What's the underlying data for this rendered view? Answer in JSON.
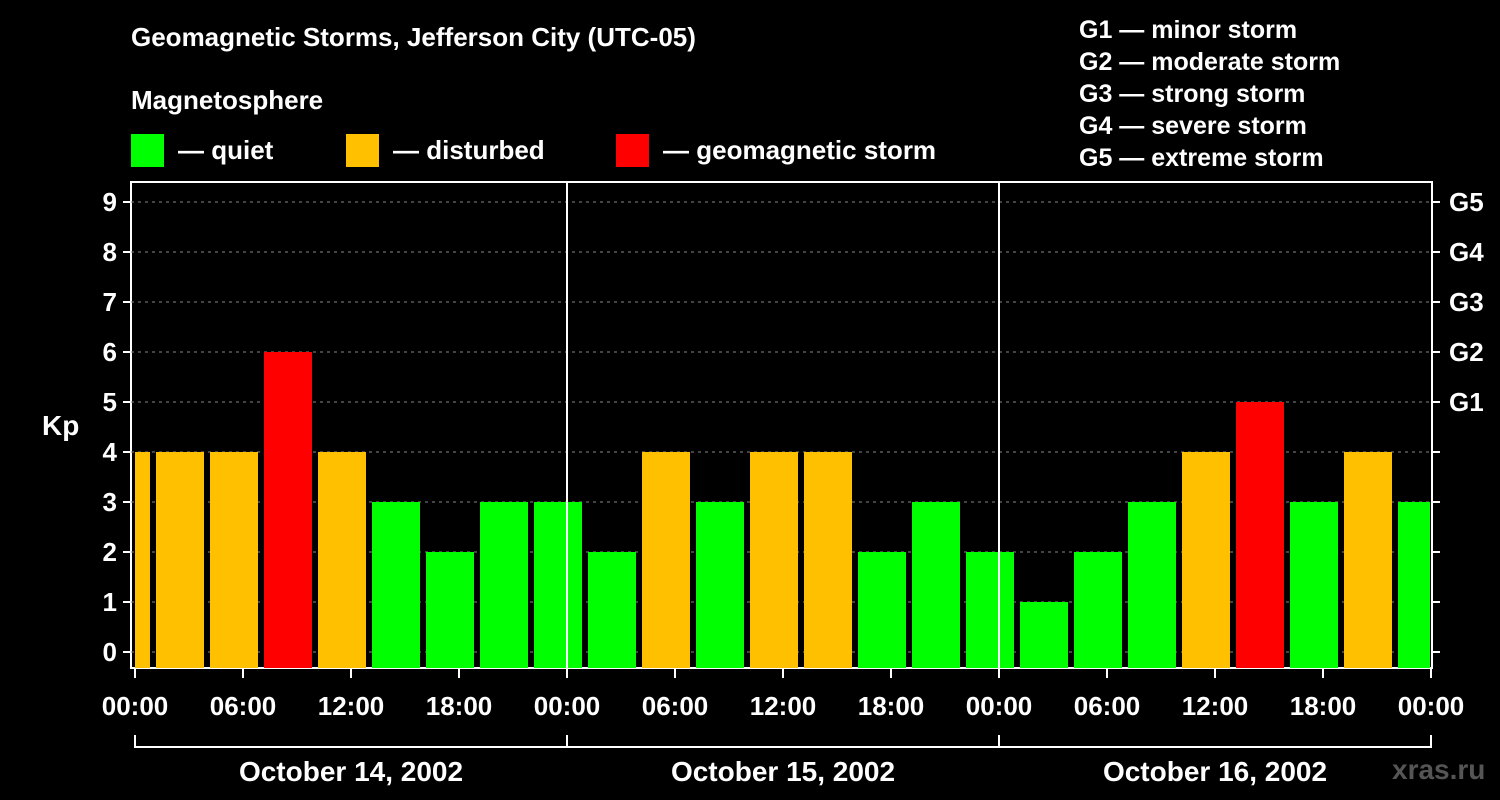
{
  "chart_data": {
    "type": "bar",
    "title": "Geomagnetic Storms, Jefferson City (UTC-05)",
    "subtitle": "Magnetosphere",
    "ylabel": "Kp",
    "ylim": [
      0,
      9
    ],
    "y_ticks": [
      "0",
      "1",
      "2",
      "3",
      "4",
      "5",
      "6",
      "7",
      "8",
      "9"
    ],
    "right_axis_labels": [
      {
        "kp": 5,
        "label": "G1"
      },
      {
        "kp": 6,
        "label": "G2"
      },
      {
        "kp": 7,
        "label": "G3"
      },
      {
        "kp": 8,
        "label": "G4"
      },
      {
        "kp": 9,
        "label": "G5"
      }
    ],
    "x_tick_labels": [
      "00:00",
      "06:00",
      "12:00",
      "18:00",
      "00:00",
      "06:00",
      "12:00",
      "18:00",
      "00:00",
      "06:00",
      "12:00",
      "18:00",
      "00:00"
    ],
    "days": [
      "October 14, 2002",
      "October 15, 2002",
      "October 16, 2002"
    ],
    "values": [
      4,
      4,
      4,
      6,
      4,
      3,
      2,
      3,
      3,
      2,
      4,
      3,
      4,
      4,
      2,
      3,
      2,
      1,
      2,
      3,
      4,
      5,
      3,
      4,
      3
    ],
    "legend": [
      {
        "label": "— quiet",
        "color": "#00ff00"
      },
      {
        "label": "— disturbed",
        "color": "#ffc000"
      },
      {
        "label": "— geomagnetic storm",
        "color": "#ff0000"
      }
    ],
    "g_scale": [
      "G1 — minor storm",
      "G2 — moderate storm",
      "G3 — strong storm",
      "G4 — severe storm",
      "G5 — extreme storm"
    ],
    "grid": true,
    "colors": {
      "quiet": "#00ff00",
      "disturbed": "#ffc000",
      "storm": "#ff0000"
    }
  },
  "watermark": "xras.ru"
}
